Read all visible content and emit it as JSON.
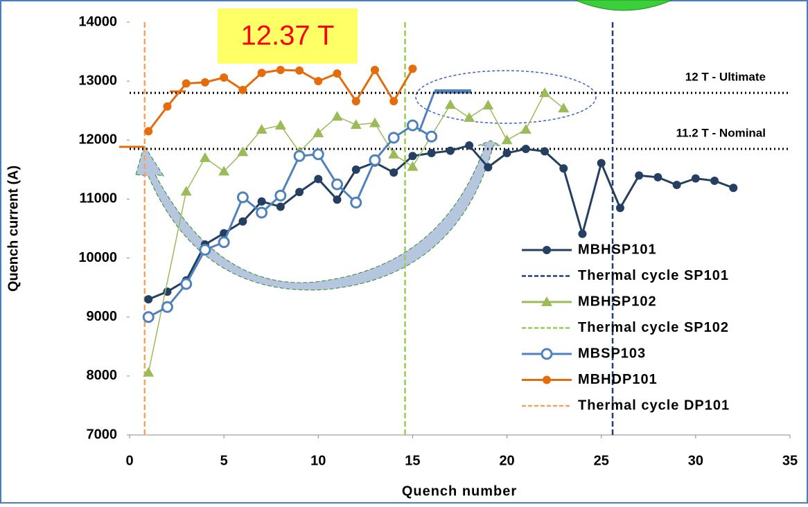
{
  "chart_data": {
    "type": "line",
    "annotation": "12.37 T",
    "x_label": "Quench number",
    "y_label": "Quench current (A)",
    "xlim": [
      0,
      35
    ],
    "xticks": [
      0,
      5,
      10,
      15,
      20,
      25,
      30,
      35
    ],
    "ylim": [
      7000,
      14000
    ],
    "yticks": [
      7000,
      8000,
      9000,
      10000,
      11000,
      12000,
      13000,
      14000
    ],
    "reference_lines": [
      {
        "label": "12 T - Ultimate",
        "value": 12800
      },
      {
        "label": "11.2 T - Nominal",
        "value": 11850
      }
    ],
    "series": [
      {
        "name": "MBHSP101",
        "kind": "line",
        "color": "#243f60",
        "marker": "circle",
        "x": [
          1,
          2,
          3,
          4,
          5,
          6,
          7,
          8,
          9,
          10,
          11,
          12,
          13,
          14,
          15,
          16,
          17,
          18,
          19,
          20,
          21,
          22,
          23,
          24,
          25,
          26,
          27,
          28,
          29,
          30,
          31,
          32
        ],
        "values": [
          9300,
          9430,
          9620,
          10230,
          10420,
          10620,
          10960,
          10870,
          11120,
          11340,
          10990,
          11500,
          11620,
          11450,
          11730,
          11780,
          11820,
          11910,
          11540,
          11780,
          11850,
          11810,
          11520,
          10410,
          11610,
          10850,
          11400,
          11370,
          11240,
          11350,
          11310,
          11190
        ]
      },
      {
        "name": "Thermal cycle SP101",
        "kind": "vline",
        "color": "#1f3f7a",
        "x": 25.6
      },
      {
        "name": "MBHSP102",
        "kind": "line",
        "color": "#9bbb59",
        "marker": "triangle",
        "x": [
          1,
          3,
          4,
          5,
          6,
          7,
          8,
          9,
          10,
          11,
          12,
          13,
          14,
          15,
          17,
          18,
          19,
          20,
          21,
          22,
          23
        ],
        "values": [
          8060,
          11130,
          11700,
          11470,
          11800,
          12180,
          12250,
          11800,
          12120,
          12400,
          12260,
          12290,
          11760,
          11550,
          12600,
          12380,
          12590,
          12000,
          12180,
          12800,
          12540
        ]
      },
      {
        "name": "Thermal cycle SP102",
        "kind": "vline",
        "color": "#92d050",
        "x": 14.6
      },
      {
        "name": "MBSP103",
        "kind": "line",
        "color": "#4f81bd",
        "marker": "hollow",
        "x": [
          1,
          2,
          3,
          4,
          5,
          6,
          7,
          8,
          9,
          10,
          11,
          12,
          13,
          14,
          15,
          16
        ],
        "values": [
          9000,
          9170,
          9560,
          10140,
          10270,
          11030,
          10770,
          11060,
          11730,
          11760,
          11250,
          10940,
          11660,
          12040,
          12250,
          12060
        ]
      },
      {
        "name": "MBHDP101",
        "kind": "line",
        "color": "#e46c0a",
        "marker": "circle",
        "x": [
          1,
          2,
          3,
          4,
          5,
          6,
          7,
          8,
          9,
          10,
          11,
          12,
          13,
          14,
          15
        ],
        "values": [
          12150,
          12570,
          12960,
          12980,
          13060,
          12850,
          13140,
          13190,
          13180,
          13000,
          13130,
          12660,
          13190,
          12660,
          13210
        ]
      },
      {
        "name": "Thermal cycle DP101",
        "kind": "vline",
        "color": "#f4a460",
        "x": 0.8
      }
    ]
  }
}
